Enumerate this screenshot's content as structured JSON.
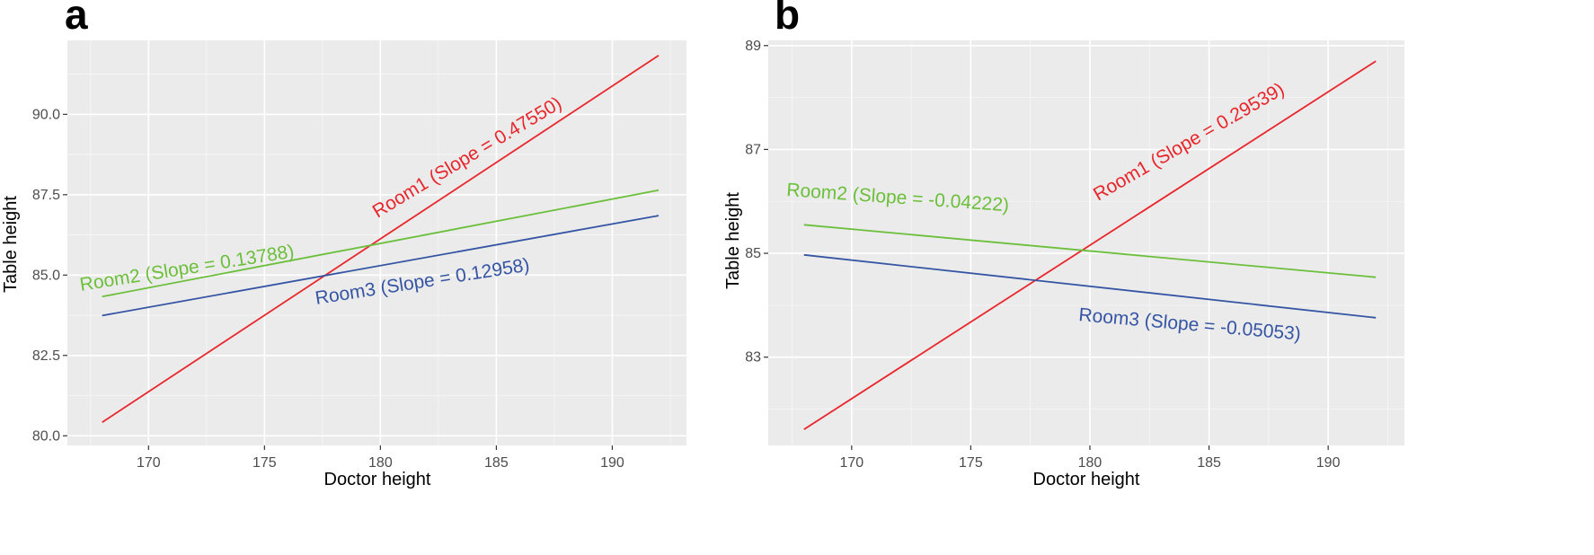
{
  "chart_data": [
    {
      "type": "line",
      "panel_label": "a",
      "xlabel": "Doctor height",
      "ylabel": "Table height",
      "xlim": [
        166.5,
        193.2
      ],
      "ylim": [
        79.7,
        92.3
      ],
      "x_ticks": [
        170,
        175,
        180,
        185,
        190
      ],
      "y_ticks": [
        80.0,
        82.5,
        85.0,
        87.5,
        90.0
      ],
      "x_tick_labels": [
        "170",
        "175",
        "180",
        "185",
        "190"
      ],
      "y_tick_labels": [
        "80.0",
        "82.5",
        "85.0",
        "87.5",
        "90.0"
      ],
      "grid": true,
      "series": [
        {
          "name": "Room1",
          "label": "Room1 (Slope = 0.47550)",
          "color": "#e8262b",
          "x": [
            168,
            192
          ],
          "y": [
            80.42,
            91.83
          ]
        },
        {
          "name": "Room2",
          "label": "Room2 (Slope = 0.13788)",
          "color": "#6bbf3a",
          "x": [
            168,
            192
          ],
          "y": [
            84.33,
            87.64
          ]
        },
        {
          "name": "Room3",
          "label": "Room3 (Slope = 0.12958)",
          "color": "#3555a4",
          "x": [
            168,
            192
          ],
          "y": [
            83.74,
            86.85
          ]
        }
      ]
    },
    {
      "type": "line",
      "panel_label": "b",
      "xlabel": "Doctor height",
      "ylabel": "Table height",
      "xlim": [
        166.5,
        193.2
      ],
      "ylim": [
        81.3,
        89.1
      ],
      "x_ticks": [
        170,
        175,
        180,
        185,
        190
      ],
      "y_ticks": [
        83,
        85,
        87,
        89
      ],
      "x_tick_labels": [
        "170",
        "175",
        "180",
        "185",
        "190"
      ],
      "y_tick_labels": [
        "83",
        "85",
        "87",
        "89"
      ],
      "grid": true,
      "series": [
        {
          "name": "Room1",
          "label": "Room1 (Slope = 0.29539)",
          "color": "#e8262b",
          "x": [
            168,
            192
          ],
          "y": [
            81.61,
            88.7
          ]
        },
        {
          "name": "Room2",
          "label": "Room2 (Slope = -0.04222)",
          "color": "#6bbf3a",
          "x": [
            168,
            192
          ],
          "y": [
            85.55,
            84.54
          ]
        },
        {
          "name": "Room3",
          "label": "Room3 (Slope = -0.05053)",
          "color": "#3555a4",
          "x": [
            168,
            192
          ],
          "y": [
            84.97,
            83.76
          ]
        }
      ]
    }
  ]
}
